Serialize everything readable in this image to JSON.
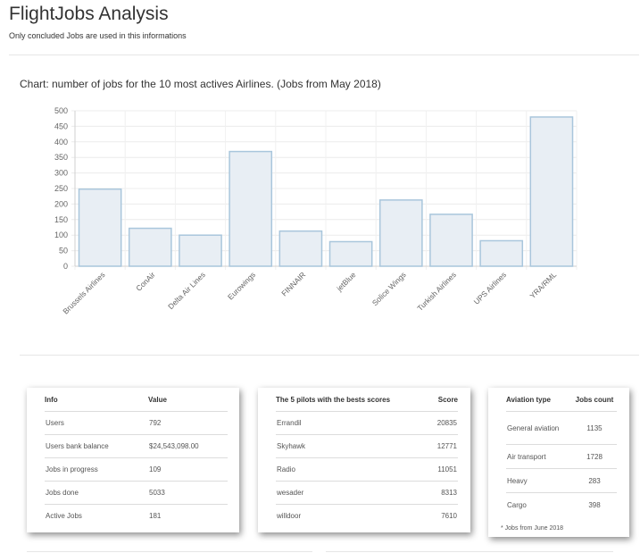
{
  "header": {
    "title": "FlightJobs Analysis",
    "subtitle": "Only concluded Jobs are used in this informations"
  },
  "chart_data": {
    "type": "bar",
    "title": "Chart: number of jobs for the 10 most actives Airlines. (Jobs from May 2018)",
    "categories": [
      "Brussels Airlines",
      "ConAir",
      "Delta Air Lines",
      "Eurowings",
      "FINNAIR",
      "jetBlue",
      "Solice Wings",
      "Turkish Airlines",
      "UPS Airlines",
      "YRA/RML"
    ],
    "values": [
      248,
      122,
      100,
      369,
      113,
      79,
      213,
      167,
      82,
      480
    ],
    "ylim": [
      0,
      500
    ],
    "yticks": [
      0,
      50,
      100,
      150,
      200,
      250,
      300,
      350,
      400,
      450,
      500
    ],
    "bar_fill": "#e8eef4",
    "bar_stroke": "#a9c6dc",
    "grid": true,
    "xlabel": "",
    "ylabel": ""
  },
  "info_card": {
    "headers": [
      "Info",
      "Value"
    ],
    "rows": [
      [
        "Users",
        "792"
      ],
      [
        "Users bank balance",
        "$24,543,098.00"
      ],
      [
        "Jobs in progress",
        "109"
      ],
      [
        "Jobs done",
        "5033"
      ],
      [
        "Active Jobs",
        "181"
      ]
    ]
  },
  "pilots_card": {
    "headers": [
      "The 5 pilots with the bests scores",
      "Score"
    ],
    "rows": [
      [
        "Errandil",
        "20835"
      ],
      [
        "Skyhawk",
        "12771"
      ],
      [
        "Radio",
        "11051"
      ],
      [
        "wesader",
        "8313"
      ],
      [
        "willdoor",
        "7610"
      ]
    ]
  },
  "aviation_card": {
    "headers": [
      "Aviation type",
      "Jobs count"
    ],
    "rows": [
      [
        "General aviation",
        "1135"
      ],
      [
        "Air transport",
        "1728"
      ],
      [
        "Heavy",
        "283"
      ],
      [
        "Cargo",
        "398"
      ]
    ],
    "note": "* Jobs from June 2018"
  }
}
